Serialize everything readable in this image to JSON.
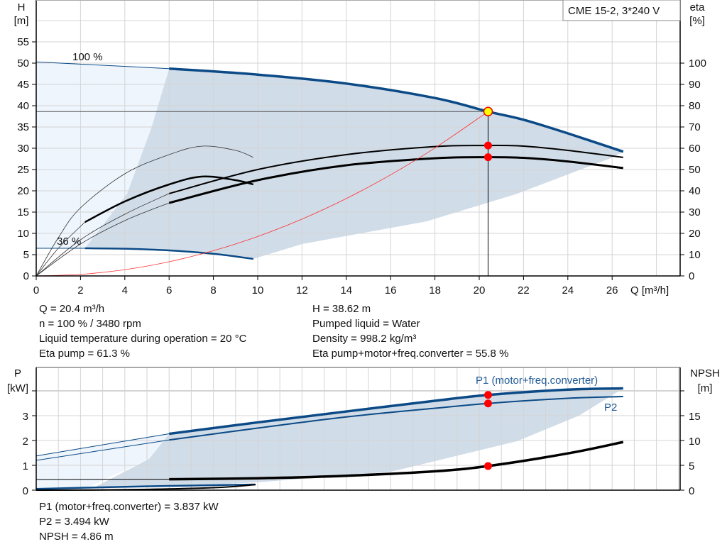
{
  "chart_data": [
    {
      "type": "line",
      "title": "CME 15-2, 3*240 V",
      "xlabel": "Q [m³/h]",
      "ylabel": "H\n[m]",
      "ylabel_left_lines": [
        "H",
        "[m]"
      ],
      "ylabel_right_lines": [
        "eta",
        "[%]"
      ],
      "xlim": [
        0,
        29
      ],
      "ylim": [
        0,
        58
      ],
      "y2lim": [
        0,
        116
      ],
      "xticks": [
        "0",
        "2",
        "4",
        "6",
        "8",
        "10",
        "12",
        "14",
        "16",
        "18",
        "20",
        "22",
        "24",
        "26"
      ],
      "yticks": [
        "0",
        "5",
        "10",
        "15",
        "20",
        "25",
        "30",
        "35",
        "40",
        "45",
        "50",
        "55"
      ],
      "y2ticks": [
        "0",
        "10",
        "20",
        "30",
        "40",
        "50",
        "60",
        "70",
        "80",
        "90",
        "100"
      ],
      "grid": true,
      "annotations": [
        "100 %",
        "36 %"
      ],
      "operating_point": {
        "Q": 20.4,
        "H": 38.62,
        "eta_pump": 61.3,
        "eta_total": 55.8
      },
      "series": [
        {
          "axis": "H",
          "style": "speed100-thin",
          "points": [
            [
              0,
              50.3
            ],
            [
              3,
              49.5
            ],
            [
              6,
              48.7
            ]
          ]
        },
        {
          "axis": "H",
          "style": "speed100",
          "points": [
            [
              6,
              48.7
            ],
            [
              10,
              47.3
            ],
            [
              14,
              45.2
            ],
            [
              18,
              41.8
            ],
            [
              20.4,
              38.62
            ],
            [
              22,
              36.7
            ],
            [
              24,
              33.5
            ],
            [
              26.5,
              29.2
            ]
          ]
        },
        {
          "axis": "H",
          "style": "speed36-thin",
          "points": [
            [
              0,
              6.5
            ],
            [
              2.2,
              6.5
            ]
          ]
        },
        {
          "axis": "H",
          "style": "speed36",
          "points": [
            [
              2.2,
              6.5
            ],
            [
              4,
              6.4
            ],
            [
              6,
              6.0
            ],
            [
              8,
              5.2
            ],
            [
              9.8,
              4.0
            ]
          ]
        },
        {
          "axis": "eta",
          "style": "eta-thin",
          "points": [
            [
              0,
              0
            ],
            [
              2,
              17
            ],
            [
              4,
              29
            ],
            [
              6,
              38.7
            ]
          ]
        },
        {
          "axis": "eta",
          "style": "eta-pump",
          "points": [
            [
              6,
              38.7
            ],
            [
              10,
              50
            ],
            [
              14,
              57
            ],
            [
              18,
              60.8
            ],
            [
              20.4,
              61.3
            ],
            [
              22,
              61
            ],
            [
              24,
              59
            ],
            [
              26.5,
              55.7
            ]
          ]
        },
        {
          "axis": "eta",
          "style": "eta-thin",
          "points": [
            [
              0,
              0
            ],
            [
              2,
              15
            ],
            [
              4,
              26
            ],
            [
              6,
              34.3
            ]
          ]
        },
        {
          "axis": "eta",
          "style": "eta-total",
          "points": [
            [
              6,
              34.3
            ],
            [
              10,
              45
            ],
            [
              14,
              52
            ],
            [
              18,
              55.3
            ],
            [
              20.4,
              55.8
            ],
            [
              22,
              55.5
            ],
            [
              24,
              53.8
            ],
            [
              26.5,
              50.7
            ]
          ]
        },
        {
          "axis": "eta",
          "style": "eta-thin",
          "points": [
            [
              0,
              0
            ],
            [
              1,
              18
            ],
            [
              2,
              32
            ],
            [
              4,
              48
            ],
            [
              6,
              57
            ],
            [
              7.5,
              61
            ],
            [
              9,
              59
            ],
            [
              9.8,
              55.7
            ]
          ]
        },
        {
          "axis": "eta",
          "style": "eta-thin",
          "points": [
            [
              0,
              0
            ],
            [
              1,
              13
            ],
            [
              2.2,
              25.3
            ]
          ]
        },
        {
          "axis": "eta",
          "style": "eta-partial",
          "points": [
            [
              2.2,
              25.3
            ],
            [
              4,
              35
            ],
            [
              6,
              43
            ],
            [
              7.5,
              46.7
            ],
            [
              9,
              45
            ],
            [
              9.8,
              43
            ]
          ]
        },
        {
          "axis": "H",
          "style": "system",
          "points": [
            [
              0,
              0
            ],
            [
              2,
              0.37
            ],
            [
              4,
              1.48
            ],
            [
              6,
              3.34
            ],
            [
              8,
              5.94
            ],
            [
              10,
              9.28
            ],
            [
              12,
              13.36
            ],
            [
              14,
              18.19
            ],
            [
              16,
              23.76
            ],
            [
              18,
              30.07
            ],
            [
              20.4,
              38.62
            ]
          ]
        }
      ]
    },
    {
      "type": "line",
      "ylabel_left_lines": [
        "P",
        "[kW]"
      ],
      "ylabel_right_lines": [
        "NPSH",
        "[m]"
      ],
      "xlim": [
        0,
        29
      ],
      "ylim": [
        0,
        4.9
      ],
      "y2lim": [
        0,
        24.5
      ],
      "yticks": [
        "0",
        "1",
        "2",
        "3"
      ],
      "y2ticks": [
        "0",
        "5",
        "10",
        "15"
      ],
      "grid": true,
      "operating_point": {
        "Q": 20.4,
        "P1": 3.837,
        "P2": 3.494,
        "NPSH": 4.86
      },
      "series": [
        {
          "name": "P1 (motor+freq.converter)",
          "axis": "P",
          "style": "p1-thin",
          "points": [
            [
              0,
              1.38
            ],
            [
              6,
              2.27
            ]
          ]
        },
        {
          "name": "P1 (motor+freq.converter)",
          "axis": "P",
          "style": "p1",
          "points": [
            [
              6,
              2.27
            ],
            [
              10,
              2.73
            ],
            [
              14,
              3.17
            ],
            [
              18,
              3.6
            ],
            [
              20.4,
              3.837
            ],
            [
              24,
              4.05
            ],
            [
              26.5,
              4.1
            ]
          ]
        },
        {
          "name": "P2",
          "axis": "P",
          "style": "p2-thin",
          "points": [
            [
              0,
              1.2
            ],
            [
              6,
              2.02
            ]
          ]
        },
        {
          "name": "P2",
          "axis": "P",
          "style": "p2",
          "points": [
            [
              6,
              2.02
            ],
            [
              10,
              2.5
            ],
            [
              14,
              2.95
            ],
            [
              18,
              3.3
            ],
            [
              20.4,
              3.494
            ],
            [
              24,
              3.7
            ],
            [
              26.5,
              3.77
            ]
          ]
        },
        {
          "axis": "P",
          "style": "p-low",
          "points": [
            [
              0,
              0.05
            ],
            [
              2.2,
              0.1
            ],
            [
              6,
              0.17
            ],
            [
              9.9,
              0.23
            ]
          ]
        },
        {
          "axis": "NPSH",
          "style": "npsh-thin",
          "points": [
            [
              0,
              2.15
            ],
            [
              6,
              2.2
            ]
          ]
        },
        {
          "axis": "NPSH",
          "style": "npsh",
          "points": [
            [
              6,
              2.2
            ],
            [
              10,
              2.4
            ],
            [
              14,
              2.9
            ],
            [
              18,
              3.8
            ],
            [
              20.4,
              4.86
            ],
            [
              24,
              7.4
            ],
            [
              26.5,
              9.7
            ]
          ]
        },
        {
          "axis": "NPSH",
          "style": "npsh-low",
          "points": [
            [
              0,
              0
            ],
            [
              4,
              0.1
            ],
            [
              8,
              0.5
            ],
            [
              9.9,
              1.1
            ]
          ]
        }
      ]
    }
  ],
  "colors": {
    "curve_blue": "#0b4a86",
    "shade": "#d0dce8",
    "shade_light": "#eef5fd",
    "point": "#ff0000",
    "operating_point": "#ffff00",
    "system": "#ff3030"
  },
  "info_top": {
    "left": [
      "Q = 20.4 m³/h",
      "n = 100 % / 3480 rpm",
      "Liquid temperature during operation = 20 °C",
      "Eta pump = 61.3 %"
    ],
    "right": [
      "H = 38.62 m",
      "Pumped liquid = Water",
      "Density = 998.2 kg/m³",
      "Eta pump+motor+freq.converter = 55.8 %"
    ]
  },
  "info_bottom": [
    "P1 (motor+freq.converter) = 3.837 kW",
    "P2 = 3.494 kW",
    "NPSH = 4.86 m"
  ],
  "labels": {
    "p1": "P1 (motor+freq.converter)",
    "p2": "P2"
  }
}
